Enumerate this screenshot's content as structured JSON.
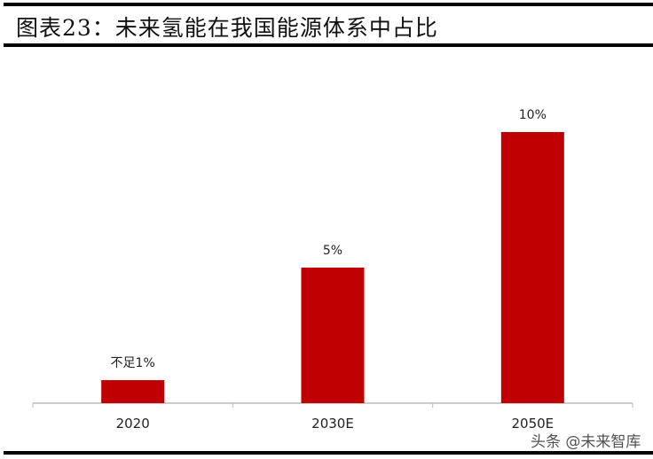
{
  "title": "图表23：未来氢能在我国能源体系中占比",
  "watermark": "头条 @未来智库",
  "chart_data": {
    "type": "bar",
    "title": "图表23：未来氢能在我国能源体系中占比",
    "categories": [
      "2020",
      "2030E",
      "2050E"
    ],
    "values": [
      0.85,
      5,
      10
    ],
    "data_labels": [
      "不足1%",
      "5%",
      "10%"
    ],
    "unit": "%",
    "ylim": [
      0,
      10
    ],
    "grid": false,
    "bar_color": "#c00000",
    "xlabel": "",
    "ylabel": ""
  }
}
